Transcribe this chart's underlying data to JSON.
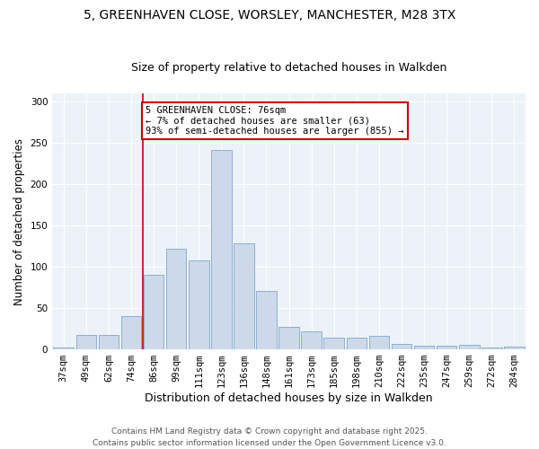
{
  "title1": "5, GREENHAVEN CLOSE, WORSLEY, MANCHESTER, M28 3TX",
  "title2": "Size of property relative to detached houses in Walkden",
  "xlabel": "Distribution of detached houses by size in Walkden",
  "ylabel": "Number of detached properties",
  "categories": [
    "37sqm",
    "49sqm",
    "62sqm",
    "74sqm",
    "86sqm",
    "99sqm",
    "111sqm",
    "123sqm",
    "136sqm",
    "148sqm",
    "161sqm",
    "173sqm",
    "185sqm",
    "198sqm",
    "210sqm",
    "222sqm",
    "235sqm",
    "247sqm",
    "259sqm",
    "272sqm",
    "284sqm"
  ],
  "values": [
    2,
    17,
    17,
    40,
    90,
    122,
    108,
    242,
    128,
    71,
    27,
    22,
    14,
    14,
    16,
    7,
    4,
    4,
    5,
    2,
    3
  ],
  "bar_color": "#cdd9e8",
  "bar_edgecolor": "#8aafd4",
  "vline_color": "#cc0000",
  "annotation_text": "5 GREENHAVEN CLOSE: 76sqm\n← 7% of detached houses are smaller (63)\n93% of semi-detached houses are larger (855) →",
  "annotation_box_color": "#ffffff",
  "annotation_box_edgecolor": "#cc0000",
  "ylim": [
    0,
    310
  ],
  "yticks": [
    0,
    50,
    100,
    150,
    200,
    250,
    300
  ],
  "background_color": "#edf2f8",
  "footer1": "Contains HM Land Registry data © Crown copyright and database right 2025.",
  "footer2": "Contains public sector information licensed under the Open Government Licence v3.0.",
  "title1_fontsize": 10,
  "title2_fontsize": 9,
  "xlabel_fontsize": 9,
  "ylabel_fontsize": 8.5,
  "tick_fontsize": 7.5,
  "annotation_fontsize": 7.5,
  "footer_fontsize": 6.5
}
